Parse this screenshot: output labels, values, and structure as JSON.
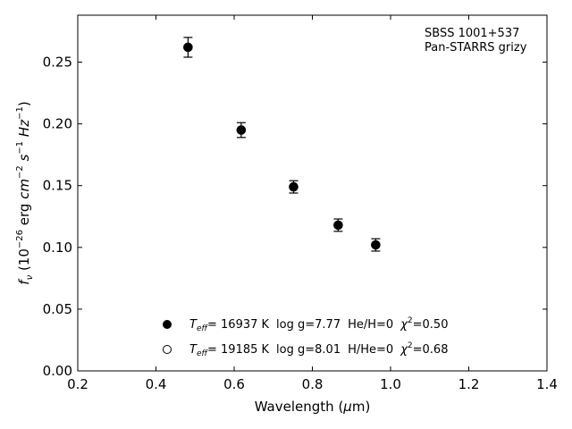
{
  "chart_data": {
    "type": "scatter",
    "xlabel": "Wavelength (μm)",
    "ylabel": "f_ν (10^-26 erg cm^-2 s^-1 Hz^-1)",
    "xlim": [
      0.2,
      1.4
    ],
    "ylim": [
      0.0,
      0.288
    ],
    "xticks": [
      "0.2",
      "0.4",
      "0.6",
      "0.8",
      "1.0",
      "1.2",
      "1.4"
    ],
    "yticks": [
      "0.00",
      "0.05",
      "0.10",
      "0.15",
      "0.20",
      "0.25"
    ],
    "xtick_values": [
      0.2,
      0.4,
      0.6,
      0.8,
      1.0,
      1.2,
      1.4
    ],
    "ytick_values": [
      0.0,
      0.05,
      0.1,
      0.15,
      0.2,
      0.25
    ],
    "grid": false,
    "annotation": {
      "line1": "SBSS 1001+537",
      "line2": "Pan-STARRS grizy"
    },
    "observed": {
      "x": [
        0.482,
        0.618,
        0.752,
        0.866,
        0.962
      ],
      "y": [
        0.262,
        0.195,
        0.149,
        0.118,
        0.102
      ],
      "err": [
        0.008,
        0.006,
        0.005,
        0.005,
        0.005
      ]
    },
    "legend": {
      "placement": "lower-center",
      "entries": [
        {
          "marker": "filled",
          "teff": "= 16937 K",
          "logg": "log g=7.77",
          "comp": "He/H=0",
          "chi": "=0.50"
        },
        {
          "marker": "open",
          "teff": "= 19185 K",
          "logg": "log g=8.01",
          "comp": "H/He=0",
          "chi": "=0.68"
        }
      ]
    }
  }
}
